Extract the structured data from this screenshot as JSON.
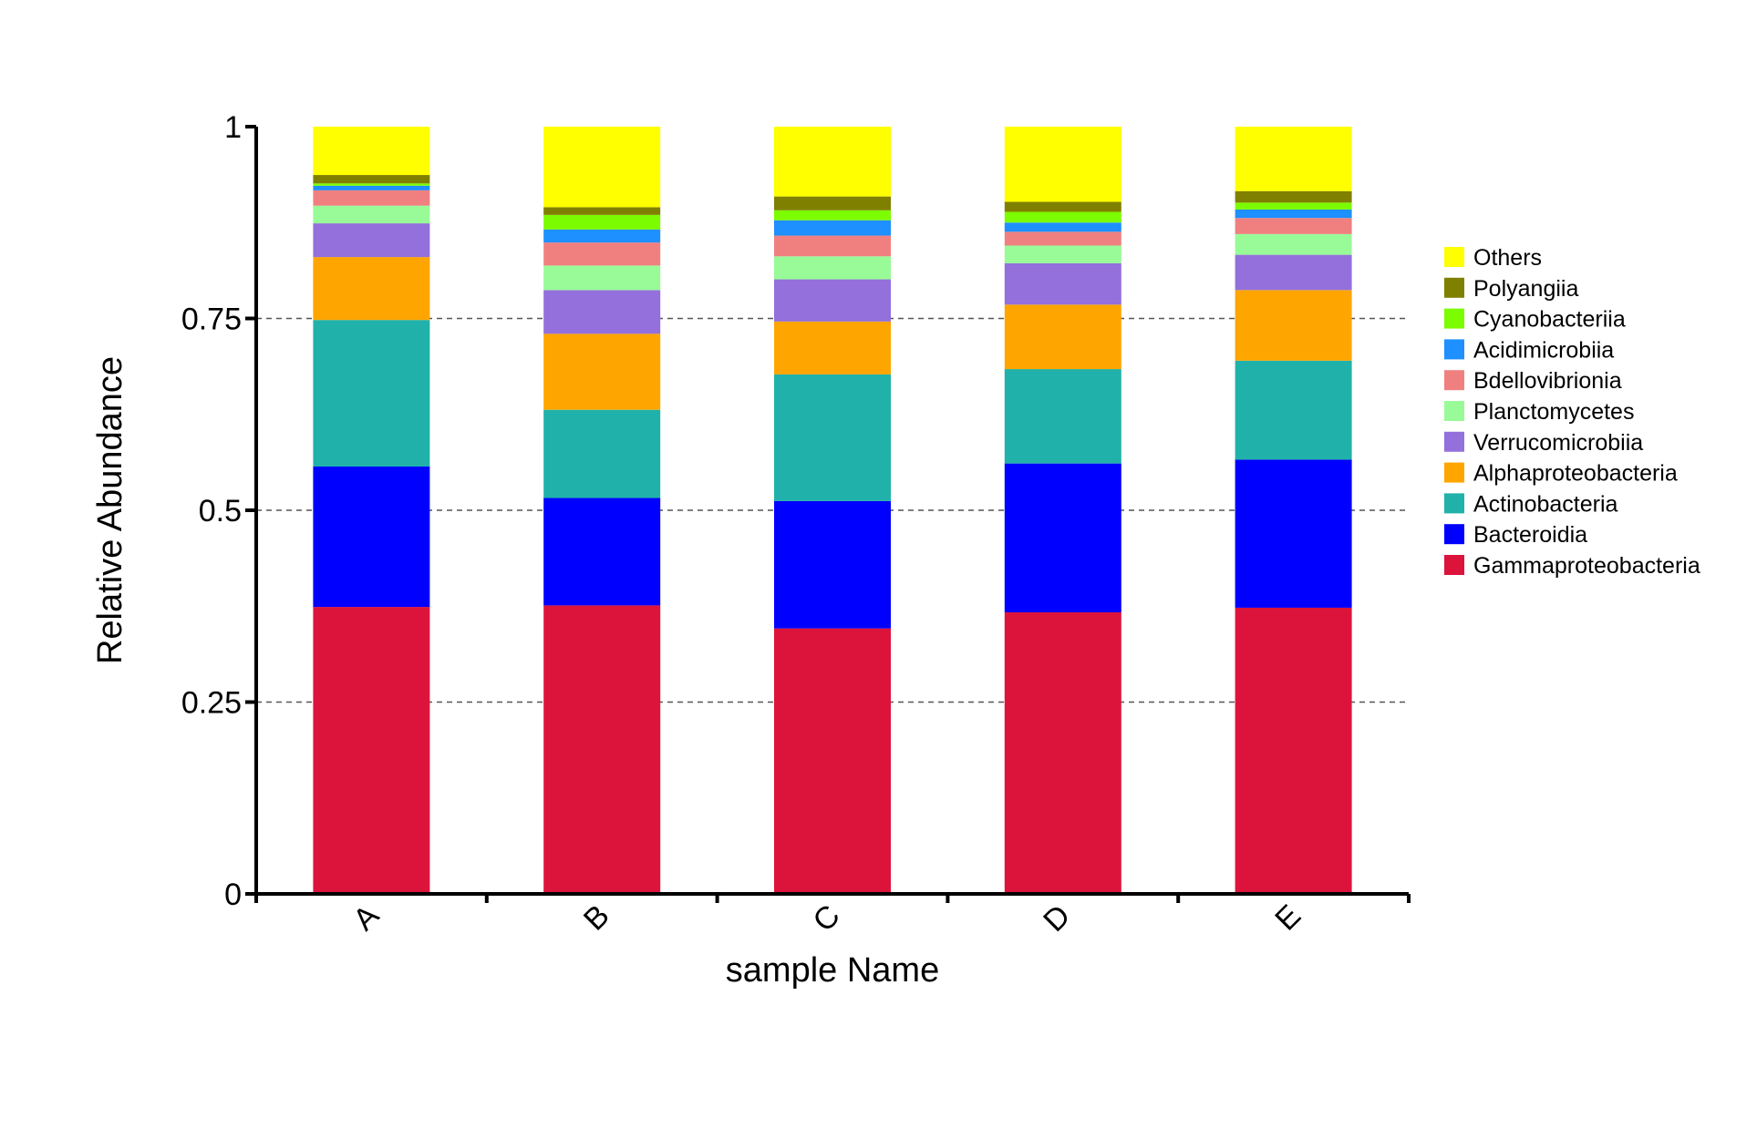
{
  "chart_data": {
    "type": "bar",
    "stacked": true,
    "categories": [
      "A",
      "B",
      "C",
      "D",
      "E"
    ],
    "xlabel": "sample Name",
    "ylabel": "Relative Abundance",
    "ylim": [
      0,
      1
    ],
    "yticks": [
      0,
      0.25,
      0.5,
      0.75,
      1
    ],
    "ytick_labels": [
      "0",
      "0.25",
      "0.5",
      "0.75",
      "1"
    ],
    "grid": "dashed horizontal at 0.25, 0.5, 0.75",
    "legend_position": "right",
    "series": [
      {
        "name": "Gammaproteobacteria",
        "color": "#DC143C",
        "values": [
          0.374,
          0.376,
          0.346,
          0.367,
          0.373
        ]
      },
      {
        "name": "Bacteroidia",
        "color": "#0000FF",
        "values": [
          0.183,
          0.14,
          0.166,
          0.194,
          0.193
        ]
      },
      {
        "name": "Actinobacteria",
        "color": "#20B2AA",
        "values": [
          0.191,
          0.115,
          0.165,
          0.123,
          0.129
        ]
      },
      {
        "name": "Alphaproteobacteria",
        "color": "#FFA500",
        "values": [
          0.082,
          0.099,
          0.069,
          0.084,
          0.092
        ]
      },
      {
        "name": "Verrucomicrobiia",
        "color": "#9370DB",
        "values": [
          0.044,
          0.057,
          0.055,
          0.054,
          0.046
        ]
      },
      {
        "name": "Planctomycetes",
        "color": "#98FB98",
        "values": [
          0.023,
          0.032,
          0.03,
          0.023,
          0.027
        ]
      },
      {
        "name": "Bdellovibrionia",
        "color": "#F08080",
        "values": [
          0.02,
          0.03,
          0.027,
          0.018,
          0.021
        ]
      },
      {
        "name": "Acidimicrobiia",
        "color": "#1E90FF",
        "values": [
          0.006,
          0.017,
          0.02,
          0.012,
          0.011
        ]
      },
      {
        "name": "Cyanobacteriia",
        "color": "#7CFC00",
        "values": [
          0.003,
          0.019,
          0.013,
          0.014,
          0.009
        ]
      },
      {
        "name": "Polyangiia",
        "color": "#808000",
        "values": [
          0.011,
          0.01,
          0.018,
          0.013,
          0.015
        ]
      },
      {
        "name": "Others",
        "color": "#FFFF00",
        "values": [
          0.063,
          0.105,
          0.091,
          0.098,
          0.084
        ]
      }
    ]
  }
}
